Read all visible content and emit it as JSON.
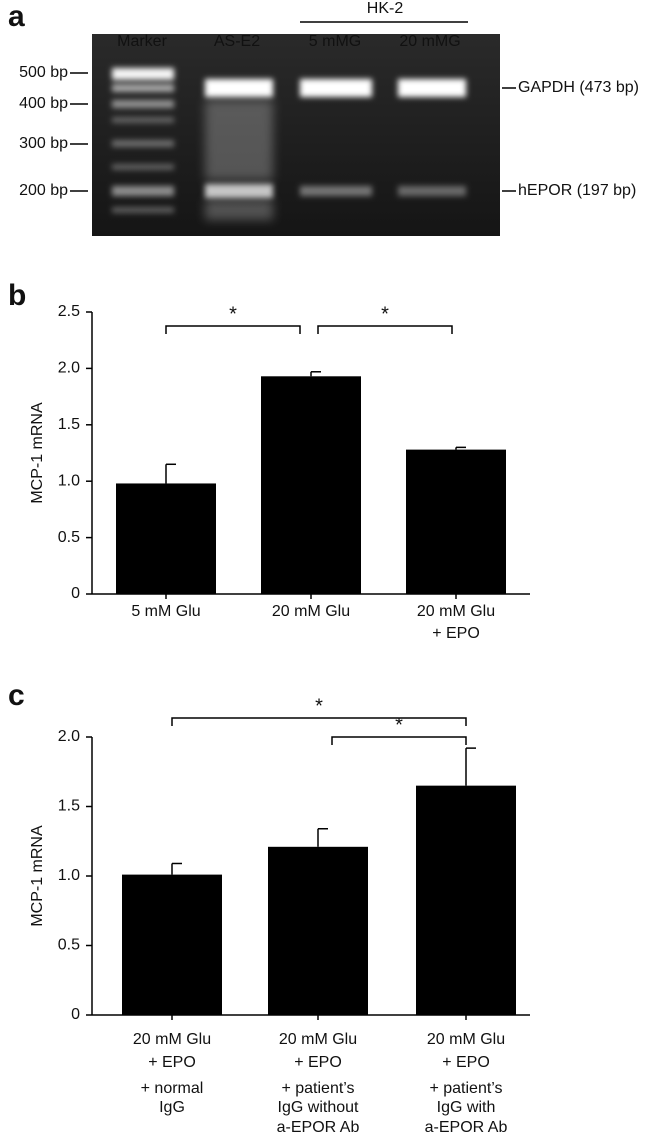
{
  "gel": {
    "panel_label": "a",
    "group_label": "HK-2",
    "lanes": [
      "Marker",
      "AS-E2",
      "5 mMG",
      "20 mMG"
    ],
    "size_markers": [
      "500 bp",
      "400 bp",
      "300 bp",
      "200 bp"
    ],
    "band_labels": [
      "GAPDH (473 bp)",
      "hEPOR (197 bp)"
    ]
  },
  "chart_data": [
    {
      "type": "bar",
      "panel_label": "b",
      "y_label": "MCP-1 mRNA",
      "categories": [
        [
          "5 mM Glu"
        ],
        [
          "20 mM Glu"
        ],
        [
          "20 mM Glu",
          "+ EPO"
        ]
      ],
      "values": [
        0.98,
        1.93,
        1.28
      ],
      "errors": [
        0.17,
        0.04,
        0.02
      ],
      "color": "#000000",
      "ylim": [
        0,
        2.5
      ],
      "yticks": [
        0,
        0.5,
        {
          "value": 1,
          "label": "1.0"
        },
        1.5,
        {
          "value": 2,
          "label": "2.0"
        },
        2.5
      ],
      "significance": [
        {
          "label": "*",
          "between": [
            0,
            1
          ]
        },
        {
          "label": "*",
          "between": [
            1,
            2
          ]
        }
      ]
    },
    {
      "type": "bar",
      "panel_label": "c",
      "y_label": "MCP-1 mRNA",
      "categories": [
        [
          "20 mM Glu",
          "+ EPO",
          "+ normal",
          "IgG"
        ],
        [
          "20 mM Glu",
          "+ EPO",
          "+ patient’s",
          "IgG without",
          "a-EPOR Ab"
        ],
        [
          "20 mM Glu",
          "+ EPO",
          "+ patient’s",
          "IgG with",
          "a-EPOR Ab"
        ]
      ],
      "values": [
        1.01,
        1.21,
        1.65
      ],
      "errors": [
        0.08,
        0.13,
        0.27
      ],
      "color": "#000000",
      "ylim": [
        0,
        2
      ],
      "yticks": [
        0,
        0.5,
        {
          "value": 1,
          "label": "1.0"
        },
        1.5,
        {
          "value": 2,
          "label": "2.0"
        }
      ],
      "significance": [
        {
          "label": "*",
          "between": [
            0,
            2
          ]
        },
        {
          "label": "*",
          "between": [
            1,
            2
          ]
        }
      ]
    }
  ]
}
